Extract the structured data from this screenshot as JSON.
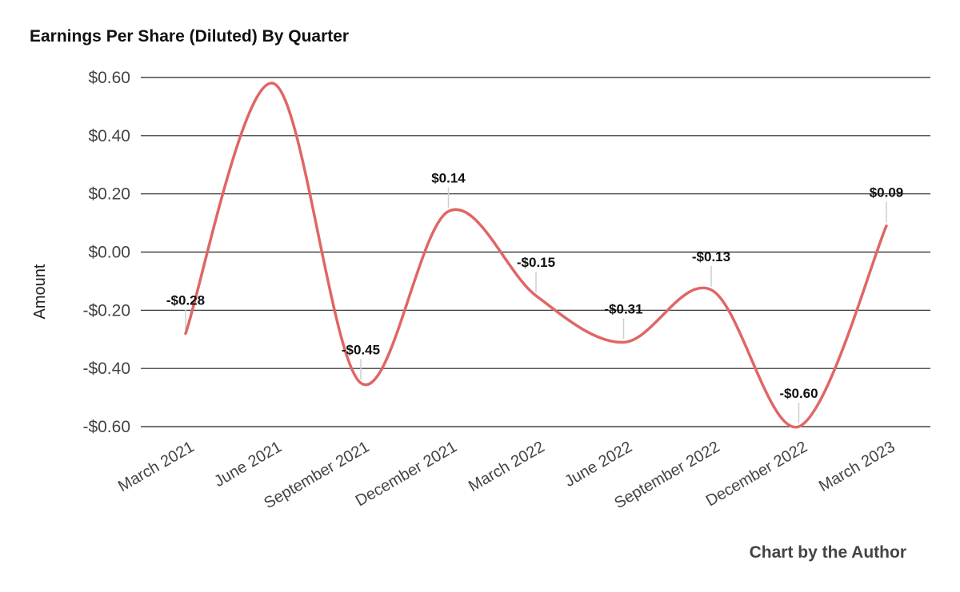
{
  "chart_data": {
    "type": "line",
    "title": "Earnings Per Share (Diluted) By Quarter",
    "credit": "Chart by the Author",
    "xlabel": "",
    "ylabel": "Amount",
    "ylim": [
      -0.6,
      0.6
    ],
    "yticks": [
      0.6,
      0.4,
      0.2,
      0.0,
      -0.2,
      -0.4,
      -0.6
    ],
    "ytick_labels": [
      "$0.60",
      "$0.40",
      "$0.20",
      "$0.00",
      "-$0.20",
      "-$0.40",
      "-$0.60"
    ],
    "grid": true,
    "line_color": "#e06666",
    "categories": [
      "March 2021",
      "June 2021",
      "September 2021",
      "December 2021",
      "March 2022",
      "June 2022",
      "September 2022",
      "December 2022",
      "March 2023"
    ],
    "values": [
      -0.28,
      0.58,
      -0.45,
      0.14,
      -0.15,
      -0.31,
      -0.13,
      -0.6,
      0.09
    ],
    "data_labels": [
      "-$0.28",
      "",
      "-$0.45",
      "$0.14",
      "-$0.15",
      "-$0.31",
      "-$0.13",
      "-$0.60",
      "$0.09"
    ]
  }
}
